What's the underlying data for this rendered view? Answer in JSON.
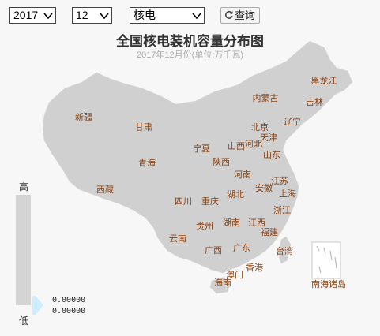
{
  "controls": {
    "year": "2017",
    "month": "12",
    "category": "核电",
    "query_label": "查询"
  },
  "title": "全国核电装机容量分布图",
  "subtitle": "2017年12月份(单位:万千瓦)",
  "legend": {
    "high_label": "高",
    "low_label": "低",
    "max_value": "0.00000",
    "min_value": "0.00000"
  },
  "colors": {
    "map_fill": "#d0d0d0",
    "label": "#8a4416",
    "legend_handle": "#cdeeff"
  },
  "provinces": [
    {
      "name": "黑龙江"
    },
    {
      "name": "吉林"
    },
    {
      "name": "辽宁"
    },
    {
      "name": "内蒙古"
    },
    {
      "name": "北京"
    },
    {
      "name": "天津"
    },
    {
      "name": "河北"
    },
    {
      "name": "山西"
    },
    {
      "name": "山东"
    },
    {
      "name": "新疆"
    },
    {
      "name": "甘肃"
    },
    {
      "name": "宁夏"
    },
    {
      "name": "陕西"
    },
    {
      "name": "青海"
    },
    {
      "name": "河南"
    },
    {
      "name": "江苏"
    },
    {
      "name": "安徽"
    },
    {
      "name": "上海"
    },
    {
      "name": "西藏"
    },
    {
      "name": "湖北"
    },
    {
      "name": "四川"
    },
    {
      "name": "重庆"
    },
    {
      "name": "浙江"
    },
    {
      "name": "贵州"
    },
    {
      "name": "湖南"
    },
    {
      "name": "江西"
    },
    {
      "name": "福建"
    },
    {
      "name": "云南"
    },
    {
      "name": "广西"
    },
    {
      "name": "广东"
    },
    {
      "name": "台湾"
    },
    {
      "name": "香港"
    },
    {
      "name": "澳门"
    },
    {
      "name": "海南"
    },
    {
      "name": "南海诸岛"
    }
  ]
}
